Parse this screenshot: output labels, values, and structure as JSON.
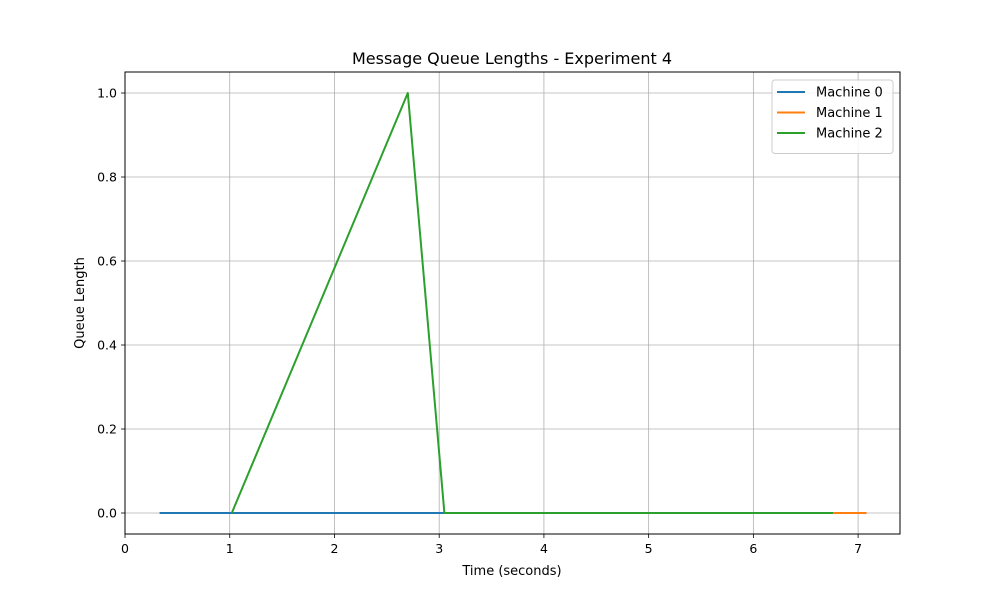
{
  "chart_data": {
    "type": "line",
    "title": "Message Queue Lengths - Experiment 4",
    "xlabel": "Time (seconds)",
    "ylabel": "Queue Length",
    "xlim": [
      0,
      7.4
    ],
    "ylim": [
      -0.05,
      1.05
    ],
    "xticks": [
      0,
      1,
      2,
      3,
      4,
      5,
      6,
      7
    ],
    "yticks": [
      0.0,
      0.2,
      0.4,
      0.6,
      0.8,
      1.0
    ],
    "xtick_labels": [
      "0",
      "1",
      "2",
      "3",
      "4",
      "5",
      "6",
      "7"
    ],
    "ytick_labels": [
      "0.0",
      "0.2",
      "0.4",
      "0.6",
      "0.8",
      "1.0"
    ],
    "grid": true,
    "legend": "top-right",
    "series": [
      {
        "name": "Machine 0",
        "color": "#1f77b4",
        "x": [
          0.33,
          3.05
        ],
        "y": [
          0,
          0
        ]
      },
      {
        "name": "Machine 1",
        "color": "#ff7f0e",
        "x": [
          6.75,
          7.08
        ],
        "y": [
          0,
          0
        ]
      },
      {
        "name": "Machine 2",
        "color": "#2ca02c",
        "x": [
          1.02,
          2.7,
          3.05,
          6.76
        ],
        "y": [
          0,
          1,
          0,
          0
        ]
      }
    ]
  }
}
